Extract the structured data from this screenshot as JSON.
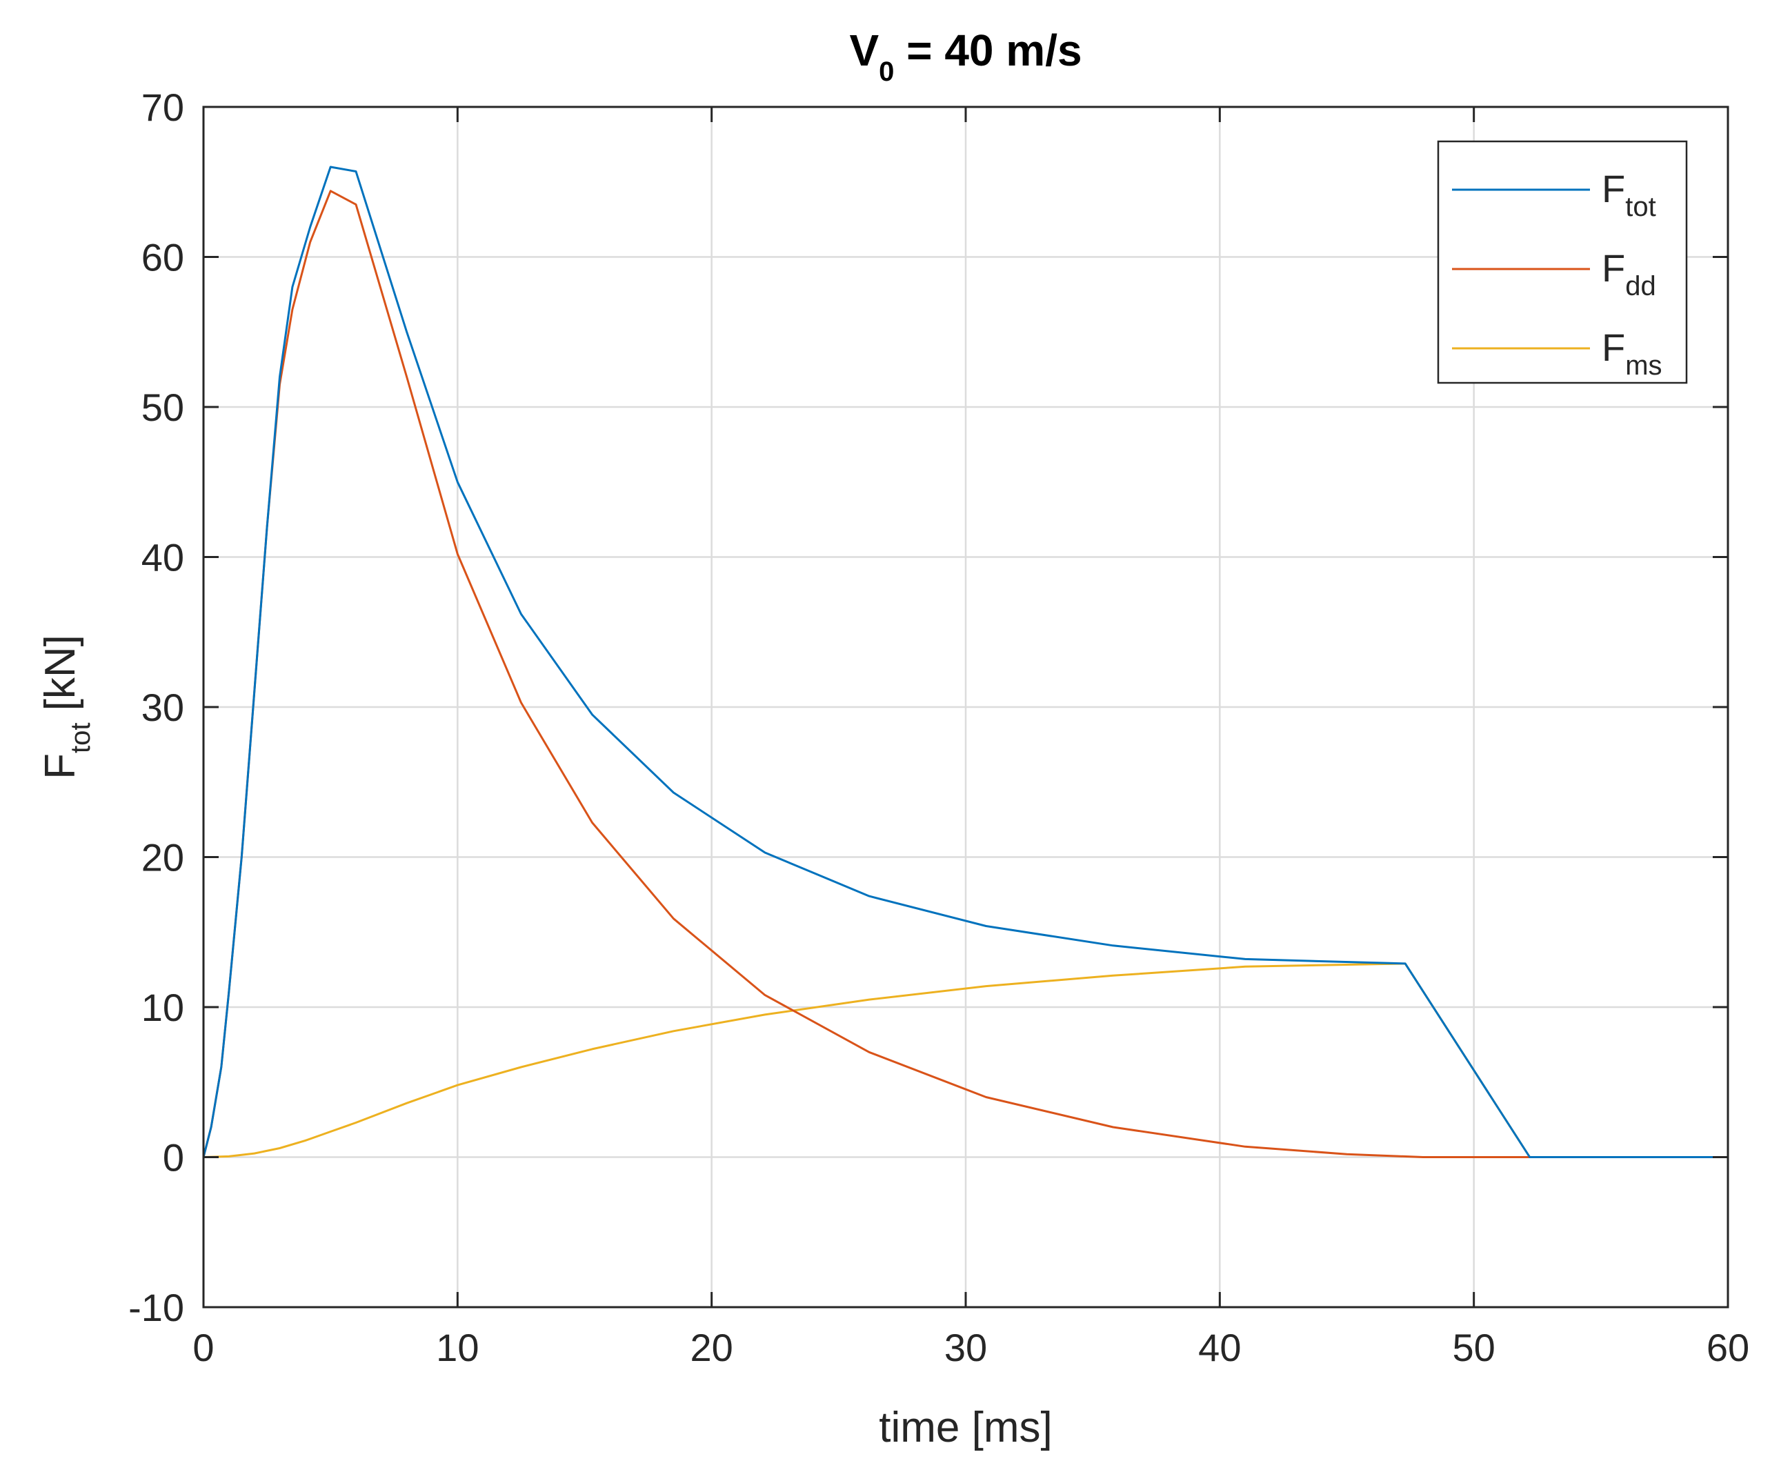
{
  "chart_data": {
    "type": "line",
    "title": "V",
    "title_sub": "0",
    "title_rest": " = 40 m/s",
    "xlabel": "time [ms]",
    "ylabel_main": "F",
    "ylabel_sub": "tot",
    "ylabel_rest": " [kN]",
    "xlim": [
      0,
      60
    ],
    "ylim": [
      -10,
      70
    ],
    "xticks": [
      0,
      10,
      20,
      30,
      40,
      50,
      60
    ],
    "yticks": [
      -10,
      0,
      10,
      20,
      30,
      40,
      50,
      60,
      70
    ],
    "xtick_labels": [
      "0",
      "10",
      "20",
      "30",
      "40",
      "50",
      "60"
    ],
    "ytick_labels": [
      "-10",
      "0",
      "10",
      "20",
      "30",
      "40",
      "50",
      "60",
      "70"
    ],
    "grid": true,
    "legend_position": "top-right",
    "series": [
      {
        "name": "F",
        "name_sub": "tot",
        "color": "#0072BD",
        "x": [
          0,
          0.3,
          0.7,
          1,
          1.5,
          2,
          2.5,
          3,
          3.5,
          4.2,
          5,
          6,
          8,
          10,
          12.5,
          15.3,
          18.5,
          22.1,
          26.2,
          30.8,
          35.8,
          41,
          47.3,
          52.2,
          60
        ],
        "y": [
          0,
          2,
          6,
          11,
          20,
          31,
          42,
          52,
          58,
          62,
          66,
          65.7,
          55,
          45,
          36.2,
          29.5,
          24.3,
          20.3,
          17.4,
          15.4,
          14.1,
          13.2,
          12.9,
          0,
          0
        ]
      },
      {
        "name": "F",
        "name_sub": "dd",
        "color": "#D95319",
        "x": [
          0,
          0.3,
          0.7,
          1,
          1.5,
          2,
          2.5,
          3,
          3.5,
          4.2,
          5,
          6,
          8,
          10,
          12.5,
          15.3,
          18.5,
          22.1,
          26.2,
          30.8,
          35.8,
          41,
          45,
          48,
          52.2,
          60
        ],
        "y": [
          0,
          2,
          6,
          11,
          20,
          31,
          42,
          51.5,
          56.5,
          61,
          64.4,
          63.5,
          52,
          40.2,
          30.3,
          22.3,
          15.9,
          10.8,
          7,
          4,
          2,
          0.7,
          0.2,
          0,
          0,
          0
        ]
      },
      {
        "name": "F",
        "name_sub": "ms",
        "color": "#EDB120",
        "x": [
          0,
          1,
          2,
          3,
          4,
          5,
          6,
          8,
          10,
          12.5,
          15.3,
          18.5,
          22.1,
          26.2,
          30.8,
          35.8,
          41,
          47.3,
          52.2,
          60
        ],
        "y": [
          0,
          0.05,
          0.25,
          0.6,
          1.1,
          1.7,
          2.3,
          3.6,
          4.8,
          6,
          7.2,
          8.4,
          9.5,
          10.5,
          11.4,
          12.1,
          12.7,
          12.9,
          0,
          0
        ]
      }
    ]
  }
}
